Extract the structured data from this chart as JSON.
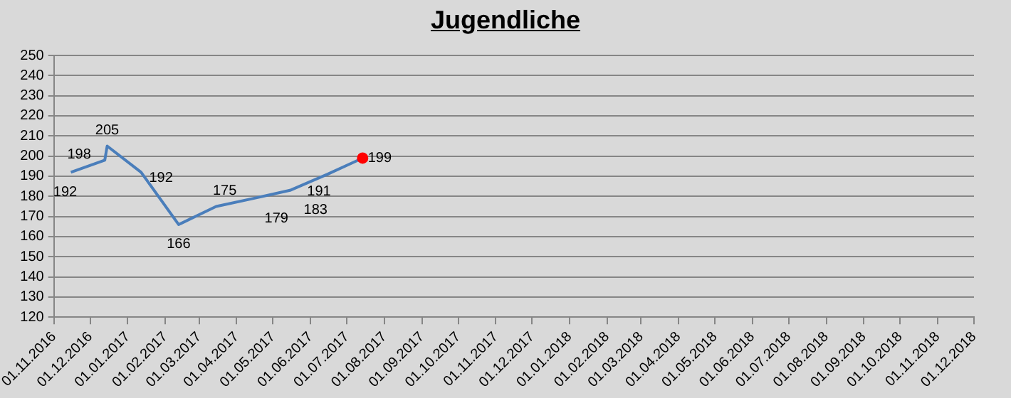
{
  "chart_data": {
    "type": "line",
    "title": "Jugendliche",
    "series": [
      {
        "type": "line",
        "color": "#4a7ebb",
        "x": [
          "2016-11-15",
          "2016-12-13",
          "2016-12-15",
          "2017-01-12",
          "2017-02-12",
          "2017-03-15",
          "2017-04-15",
          "2017-05-15",
          "2017-06-15",
          "2017-07-14"
        ],
        "values": [
          192,
          198,
          205,
          192,
          166,
          175,
          179,
          183,
          191,
          199
        ],
        "value_labels": [
          "192",
          "198",
          "205",
          "192",
          "166",
          "175",
          "179",
          "183",
          "191",
          "199"
        ]
      },
      {
        "type": "scatter",
        "color": "#ff0000",
        "marker": "circle",
        "x": [
          "2017-07-14"
        ],
        "values": [
          199
        ]
      }
    ],
    "xlim": [
      "2016-11-01",
      "2018-12-01"
    ],
    "xticks": [
      {
        "value": "2016-11-01",
        "label": "01.11.2016"
      },
      {
        "value": "2016-12-01",
        "label": "01.12.2016"
      },
      {
        "value": "2017-01-01",
        "label": "01.01.2017"
      },
      {
        "value": "2017-02-01",
        "label": "01.02.2017"
      },
      {
        "value": "2017-03-01",
        "label": "01.03.2017"
      },
      {
        "value": "2017-04-01",
        "label": "01.04.2017"
      },
      {
        "value": "2017-05-01",
        "label": "01.05.2017"
      },
      {
        "value": "2017-06-01",
        "label": "01.06.2017"
      },
      {
        "value": "2017-07-01",
        "label": "01.07.2017"
      },
      {
        "value": "2017-08-01",
        "label": "01.08.2017"
      },
      {
        "value": "2017-09-01",
        "label": "01.09.2017"
      },
      {
        "value": "2017-10-01",
        "label": "01.10.2017"
      },
      {
        "value": "2017-11-01",
        "label": "01.11.2017"
      },
      {
        "value": "2017-12-01",
        "label": "01.12.2017"
      },
      {
        "value": "2018-01-01",
        "label": "01.01.2018"
      },
      {
        "value": "2018-02-01",
        "label": "01.02.2018"
      },
      {
        "value": "2018-03-01",
        "label": "01.03.2018"
      },
      {
        "value": "2018-04-01",
        "label": "01.04.2018"
      },
      {
        "value": "2018-05-01",
        "label": "01.05.2018"
      },
      {
        "value": "2018-06-01",
        "label": "01.06.2018"
      },
      {
        "value": "2018-07-01",
        "label": "01.07.2018"
      },
      {
        "value": "2018-08-01",
        "label": "01.08.2018"
      },
      {
        "value": "2018-09-01",
        "label": "01.09.2018"
      },
      {
        "value": "2018-10-01",
        "label": "01.10.2018"
      },
      {
        "value": "2018-11-01",
        "label": "01.11.2018"
      },
      {
        "value": "2018-12-01",
        "label": "01.12.2018"
      }
    ],
    "ylim": [
      120,
      250
    ],
    "yticks": [
      120,
      130,
      140,
      150,
      160,
      170,
      180,
      190,
      200,
      210,
      220,
      230,
      240,
      250
    ],
    "grid": "y",
    "legend": false,
    "marker": "none",
    "line_style": "solid"
  }
}
